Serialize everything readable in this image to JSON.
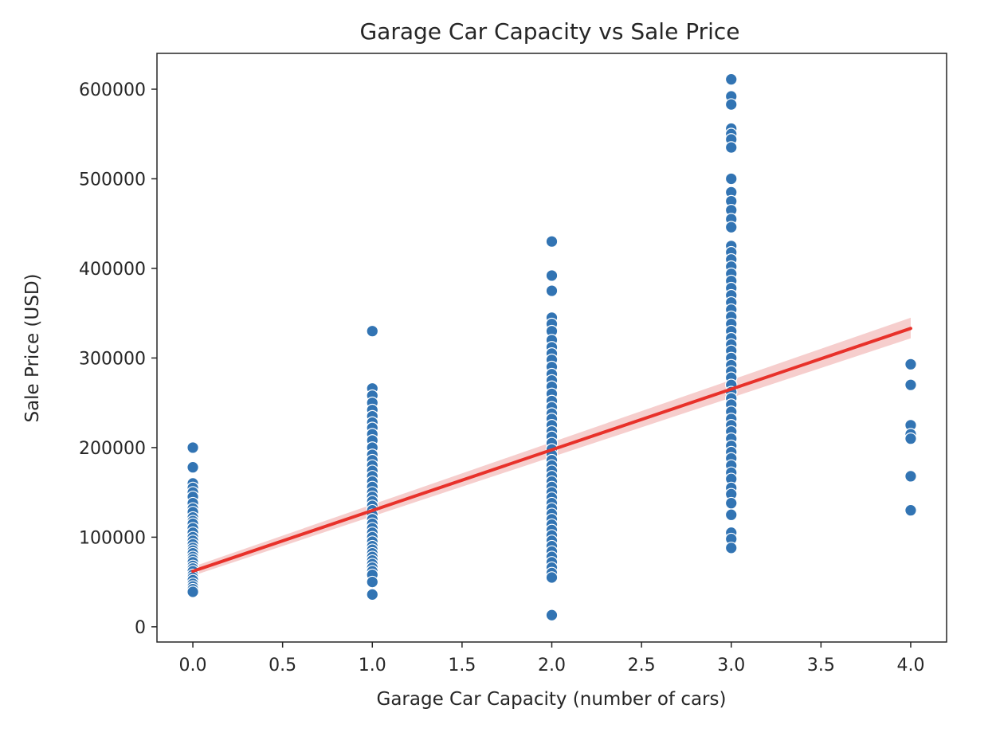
{
  "chart_data": {
    "type": "scatter",
    "title": "Garage Car Capacity vs Sale Price",
    "xlabel": "Garage Car Capacity (number of cars)",
    "ylabel": "Sale Price (USD)",
    "xlim": [
      -0.2,
      4.2
    ],
    "ylim": [
      -17000,
      640000
    ],
    "xticks": [
      0.0,
      0.5,
      1.0,
      1.5,
      2.0,
      2.5,
      3.0,
      3.5,
      4.0
    ],
    "xtick_labels": [
      "0.0",
      "0.5",
      "1.0",
      "1.5",
      "2.0",
      "2.5",
      "3.0",
      "3.5",
      "4.0"
    ],
    "yticks": [
      0,
      100000,
      200000,
      300000,
      400000,
      500000,
      600000
    ],
    "ytick_labels": [
      "0",
      "100000",
      "200000",
      "300000",
      "400000",
      "500000",
      "600000"
    ],
    "grid": false,
    "colors": {
      "points": "#3274b3",
      "regression": "#e8312a",
      "ci_band": "#f4c6c4"
    },
    "series": [
      {
        "type": "scatter",
        "points": [
          [
            0,
            200000
          ],
          [
            0,
            178000
          ],
          [
            0,
            160000
          ],
          [
            0,
            155000
          ],
          [
            0,
            150000
          ],
          [
            0,
            145000
          ],
          [
            0,
            138000
          ],
          [
            0,
            132000
          ],
          [
            0,
            128000
          ],
          [
            0,
            122000
          ],
          [
            0,
            118000
          ],
          [
            0,
            115000
          ],
          [
            0,
            110000
          ],
          [
            0,
            105000
          ],
          [
            0,
            100000
          ],
          [
            0,
            96000
          ],
          [
            0,
            92000
          ],
          [
            0,
            88000
          ],
          [
            0,
            85000
          ],
          [
            0,
            82000
          ],
          [
            0,
            78000
          ],
          [
            0,
            75000
          ],
          [
            0,
            72000
          ],
          [
            0,
            68000
          ],
          [
            0,
            65000
          ],
          [
            0,
            62000
          ],
          [
            0,
            58000
          ],
          [
            0,
            55000
          ],
          [
            0,
            52000
          ],
          [
            0,
            48000
          ],
          [
            0,
            45000
          ],
          [
            0,
            42000
          ],
          [
            0,
            39000
          ],
          [
            1,
            330000
          ],
          [
            1,
            266000
          ],
          [
            1,
            258000
          ],
          [
            1,
            250000
          ],
          [
            1,
            242000
          ],
          [
            1,
            235000
          ],
          [
            1,
            228000
          ],
          [
            1,
            222000
          ],
          [
            1,
            215000
          ],
          [
            1,
            208000
          ],
          [
            1,
            200000
          ],
          [
            1,
            192000
          ],
          [
            1,
            186000
          ],
          [
            1,
            180000
          ],
          [
            1,
            174000
          ],
          [
            1,
            168000
          ],
          [
            1,
            162000
          ],
          [
            1,
            156000
          ],
          [
            1,
            150000
          ],
          [
            1,
            145000
          ],
          [
            1,
            140000
          ],
          [
            1,
            135000
          ],
          [
            1,
            130000
          ],
          [
            1,
            125000
          ],
          [
            1,
            120000
          ],
          [
            1,
            115000
          ],
          [
            1,
            110000
          ],
          [
            1,
            105000
          ],
          [
            1,
            100000
          ],
          [
            1,
            95000
          ],
          [
            1,
            90000
          ],
          [
            1,
            86000
          ],
          [
            1,
            82000
          ],
          [
            1,
            78000
          ],
          [
            1,
            74000
          ],
          [
            1,
            70000
          ],
          [
            1,
            66000
          ],
          [
            1,
            62000
          ],
          [
            1,
            58000
          ],
          [
            1,
            50000
          ],
          [
            1,
            36000
          ],
          [
            2,
            430000
          ],
          [
            2,
            392000
          ],
          [
            2,
            375000
          ],
          [
            2,
            345000
          ],
          [
            2,
            338000
          ],
          [
            2,
            330000
          ],
          [
            2,
            320000
          ],
          [
            2,
            312000
          ],
          [
            2,
            305000
          ],
          [
            2,
            298000
          ],
          [
            2,
            290000
          ],
          [
            2,
            282000
          ],
          [
            2,
            275000
          ],
          [
            2,
            268000
          ],
          [
            2,
            260000
          ],
          [
            2,
            252000
          ],
          [
            2,
            245000
          ],
          [
            2,
            238000
          ],
          [
            2,
            232000
          ],
          [
            2,
            225000
          ],
          [
            2,
            218000
          ],
          [
            2,
            212000
          ],
          [
            2,
            205000
          ],
          [
            2,
            198000
          ],
          [
            2,
            192000
          ],
          [
            2,
            186000
          ],
          [
            2,
            180000
          ],
          [
            2,
            174000
          ],
          [
            2,
            168000
          ],
          [
            2,
            162000
          ],
          [
            2,
            156000
          ],
          [
            2,
            150000
          ],
          [
            2,
            144000
          ],
          [
            2,
            138000
          ],
          [
            2,
            132000
          ],
          [
            2,
            126000
          ],
          [
            2,
            120000
          ],
          [
            2,
            114000
          ],
          [
            2,
            108000
          ],
          [
            2,
            102000
          ],
          [
            2,
            96000
          ],
          [
            2,
            90000
          ],
          [
            2,
            84000
          ],
          [
            2,
            78000
          ],
          [
            2,
            72000
          ],
          [
            2,
            66000
          ],
          [
            2,
            60000
          ],
          [
            2,
            55000
          ],
          [
            2,
            13000
          ],
          [
            3,
            611000
          ],
          [
            3,
            592000
          ],
          [
            3,
            583000
          ],
          [
            3,
            556000
          ],
          [
            3,
            550000
          ],
          [
            3,
            544000
          ],
          [
            3,
            535000
          ],
          [
            3,
            500000
          ],
          [
            3,
            485000
          ],
          [
            3,
            475000
          ],
          [
            3,
            465000
          ],
          [
            3,
            455000
          ],
          [
            3,
            446000
          ],
          [
            3,
            425000
          ],
          [
            3,
            418000
          ],
          [
            3,
            410000
          ],
          [
            3,
            402000
          ],
          [
            3,
            394000
          ],
          [
            3,
            386000
          ],
          [
            3,
            378000
          ],
          [
            3,
            370000
          ],
          [
            3,
            362000
          ],
          [
            3,
            354000
          ],
          [
            3,
            346000
          ],
          [
            3,
            338000
          ],
          [
            3,
            330000
          ],
          [
            3,
            322000
          ],
          [
            3,
            315000
          ],
          [
            3,
            308000
          ],
          [
            3,
            300000
          ],
          [
            3,
            292000
          ],
          [
            3,
            285000
          ],
          [
            3,
            278000
          ],
          [
            3,
            270000
          ],
          [
            3,
            262000
          ],
          [
            3,
            255000
          ],
          [
            3,
            248000
          ],
          [
            3,
            240000
          ],
          [
            3,
            232000
          ],
          [
            3,
            225000
          ],
          [
            3,
            218000
          ],
          [
            3,
            210000
          ],
          [
            3,
            202000
          ],
          [
            3,
            195000
          ],
          [
            3,
            188000
          ],
          [
            3,
            180000
          ],
          [
            3,
            172000
          ],
          [
            3,
            165000
          ],
          [
            3,
            155000
          ],
          [
            3,
            148000
          ],
          [
            3,
            138000
          ],
          [
            3,
            125000
          ],
          [
            3,
            105000
          ],
          [
            3,
            98000
          ],
          [
            3,
            88000
          ],
          [
            4,
            293000
          ],
          [
            4,
            270000
          ],
          [
            4,
            225000
          ],
          [
            4,
            215000
          ],
          [
            4,
            210000
          ],
          [
            4,
            168000
          ],
          [
            4,
            130000
          ]
        ]
      },
      {
        "type": "line",
        "points": [
          [
            0,
            62000
          ],
          [
            4,
            333000
          ]
        ],
        "ci_band": {
          "lower": [
            [
              0,
              57000
            ],
            [
              4,
              322000
            ]
          ],
          "upper": [
            [
              0,
              67000
            ],
            [
              4,
              345000
            ]
          ]
        }
      }
    ]
  }
}
